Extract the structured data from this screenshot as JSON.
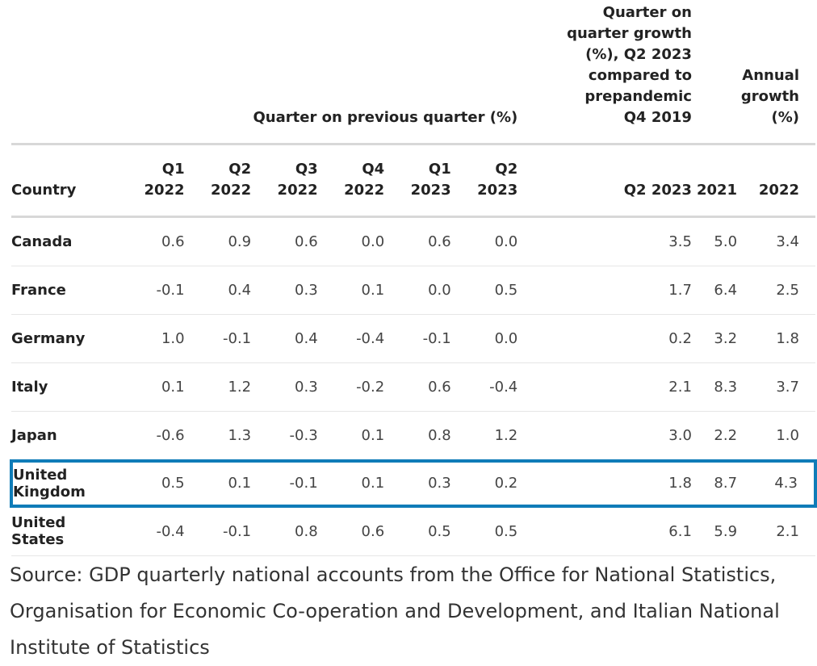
{
  "header": {
    "group_quarterly": "Quarter on previous quarter (%)",
    "group_prepandemic": "Quarter on quarter growth (%), Q2 2023 compared to prepandemic Q4 2019",
    "group_annual": "Annual growth (%)",
    "columns": [
      {
        "top": "",
        "bottom": "Country"
      },
      {
        "top": "Q1",
        "bottom": "2022"
      },
      {
        "top": "Q2",
        "bottom": "2022"
      },
      {
        "top": "Q3",
        "bottom": "2022"
      },
      {
        "top": "Q4",
        "bottom": "2022"
      },
      {
        "top": "Q1",
        "bottom": "2023"
      },
      {
        "top": "Q2",
        "bottom": "2023"
      },
      {
        "top": "",
        "bottom": "Q2 2023"
      },
      {
        "top": "",
        "bottom": "2021"
      },
      {
        "top": "",
        "bottom": "2022"
      }
    ]
  },
  "rows": [
    {
      "country": "Canada",
      "values": [
        "0.6",
        "0.9",
        "0.6",
        "0.0",
        "0.6",
        "0.0",
        "3.5",
        "5.0",
        "3.4"
      ]
    },
    {
      "country": "France",
      "values": [
        "-0.1",
        "0.4",
        "0.3",
        "0.1",
        "0.0",
        "0.5",
        "1.7",
        "6.4",
        "2.5"
      ]
    },
    {
      "country": "Germany",
      "values": [
        "1.0",
        "-0.1",
        "0.4",
        "-0.4",
        "-0.1",
        "0.0",
        "0.2",
        "3.2",
        "1.8"
      ]
    },
    {
      "country": "Italy",
      "values": [
        "0.1",
        "1.2",
        "0.3",
        "-0.2",
        "0.6",
        "-0.4",
        "2.1",
        "8.3",
        "3.7"
      ]
    },
    {
      "country": "Japan",
      "values": [
        "-0.6",
        "1.3",
        "-0.3",
        "0.1",
        "0.8",
        "1.2",
        "3.0",
        "2.2",
        "1.0"
      ]
    },
    {
      "country": "United Kingdom",
      "values": [
        "0.5",
        "0.1",
        "-0.1",
        "0.1",
        "0.3",
        "0.2",
        "1.8",
        "8.7",
        "4.3"
      ],
      "highlighted": true
    },
    {
      "country": "United States",
      "values": [
        "-0.4",
        "-0.1",
        "0.8",
        "0.6",
        "0.5",
        "0.5",
        "6.1",
        "5.9",
        "2.1"
      ]
    }
  ],
  "source": "Source: GDP quarterly national accounts from the Office for National Statistics, Organisation for Economic Co-operation and Development, and Italian National Institute of Statistics",
  "colors": {
    "highlight_border": "#0f7cb8"
  }
}
